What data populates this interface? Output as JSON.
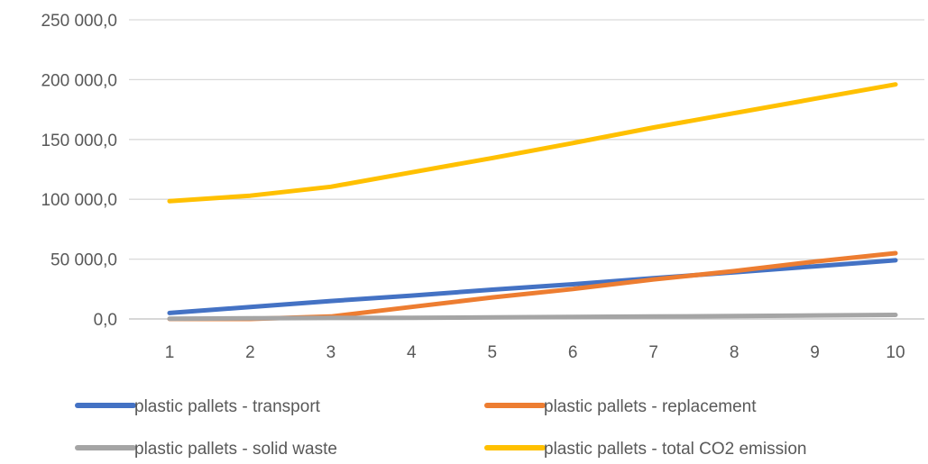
{
  "chart_data": {
    "type": "line",
    "title": "",
    "xlabel": "",
    "ylabel": "",
    "x": [
      1,
      2,
      3,
      4,
      5,
      6,
      7,
      8,
      9,
      10
    ],
    "x_tick_labels": [
      "1",
      "2",
      "3",
      "4",
      "5",
      "6",
      "7",
      "8",
      "9",
      "10"
    ],
    "ylim": [
      0,
      250000
    ],
    "y_ticks": [
      0,
      50000,
      100000,
      150000,
      200000,
      250000
    ],
    "y_tick_labels": [
      "0,0",
      "50 000,0",
      "100 000,0",
      "150 000,0",
      "200 000,0",
      "250 000,0"
    ],
    "grid": true,
    "legend_position": "bottom",
    "series": [
      {
        "name": "plastic pallets - transport",
        "color": "#4472C4",
        "values": [
          5000,
          10000,
          15000,
          19500,
          24500,
          29000,
          34000,
          39000,
          44000,
          49000
        ]
      },
      {
        "name": "plastic pallets - replacement",
        "color": "#ED7D31",
        "values": [
          0,
          0,
          2000,
          10000,
          18000,
          25000,
          33000,
          40000,
          48000,
          55000
        ]
      },
      {
        "name": "plastic pallets - solid waste",
        "color": "#A5A5A5",
        "values": [
          200,
          500,
          800,
          1000,
          1300,
          1700,
          2000,
          2400,
          2900,
          3400
        ]
      },
      {
        "name": "plastic pallets - total CO2 emission",
        "color": "#FFC000",
        "values": [
          98500,
          103000,
          110500,
          122500,
          134500,
          147000,
          160000,
          172000,
          184000,
          196000
        ]
      }
    ]
  }
}
